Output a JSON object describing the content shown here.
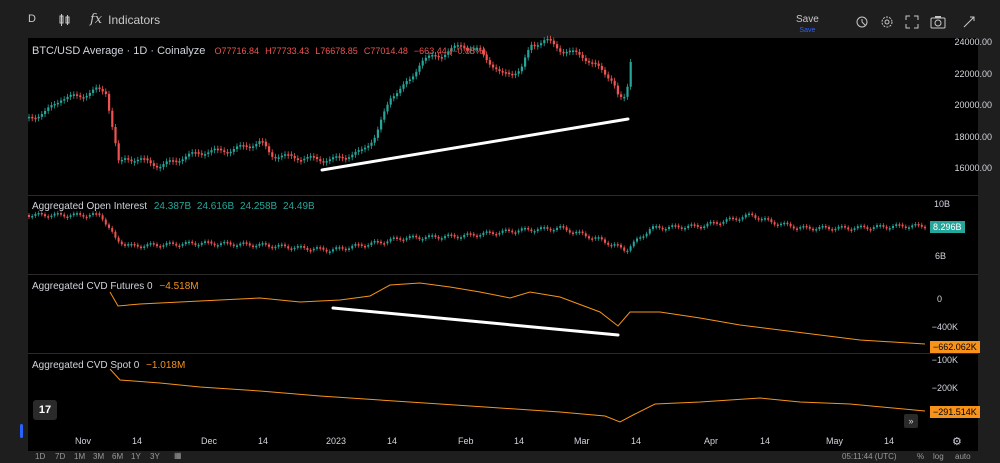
{
  "toolbar": {
    "symbol_short": "D",
    "indicators_label": "Indicators",
    "save_label": "Save",
    "save_sub": "Save"
  },
  "main_chart": {
    "title": "BTC/USD Average · 1D · Coinalyze",
    "open": "O77716.84",
    "high": "H77733.43",
    "low": "L76678.85",
    "close": "C77014.48",
    "change": "−663.44 (−0.85%)",
    "axis": [
      "24000.00",
      "22000.00",
      "20000.00",
      "18000.00",
      "16000.00"
    ]
  },
  "oi_pane": {
    "title": "Aggregated Open Interest",
    "values": [
      "24.387B",
      "24.616B",
      "24.258B",
      "24.49B"
    ],
    "axis": [
      "10B",
      "6B"
    ],
    "current": "8.296B"
  },
  "cvd_futures": {
    "title": "Aggregated CVD Futures 0",
    "value": "−4.518M",
    "axis": [
      "0",
      "−400K"
    ],
    "current": "−662.062K"
  },
  "cvd_spot": {
    "title": "Aggregated CVD Spot 0",
    "value": "−1.018M",
    "axis": [
      "−100K",
      "−200K"
    ],
    "current": "−291.514K"
  },
  "time_axis": [
    "Nov",
    "14",
    "Dec",
    "14",
    "2023",
    "14",
    "Feb",
    "14",
    "Mar",
    "14",
    "Apr",
    "14",
    "May",
    "14"
  ],
  "bottom_bar": [
    "1D",
    "7D",
    "1M",
    "3M",
    "6M",
    "1Y",
    "3Y"
  ],
  "bottom_right": [
    "05:11:44 (UTC)",
    "%",
    "log",
    "auto"
  ],
  "colors": {
    "up": "#26a69a",
    "down": "#ef5350",
    "cvd": "#f7931a",
    "oi_label": "#26a69a",
    "accent": "#2962ff"
  }
}
